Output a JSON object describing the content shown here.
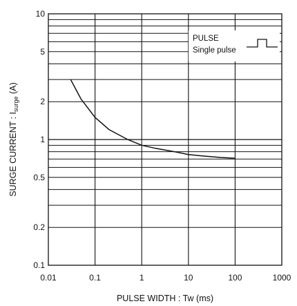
{
  "chart_data": {
    "type": "line",
    "x_scale": "log",
    "y_scale": "log",
    "xlim": [
      0.01,
      1000
    ],
    "ylim": [
      0.1,
      10
    ],
    "x_ticks": [
      "0.01",
      "0.1",
      "1",
      "10",
      "100",
      "1000"
    ],
    "y_ticks": [
      "0.1",
      "0.2",
      "0.5",
      "1",
      "2",
      "5",
      "10"
    ],
    "xlabel": "PULSE  WIDTH : Tw (ms)",
    "ylabel_main": "SURGE  CURRENT : I",
    "ylabel_sub": "surge",
    "ylabel_unit": " (A)",
    "legend": {
      "title": "PULSE",
      "entry": "Single pulse",
      "placement": "top-right",
      "icon": "single-pulse-waveform-icon"
    },
    "grid": true,
    "series": [
      {
        "x": [
          0.03,
          0.05,
          0.1,
          0.2,
          0.5,
          1,
          2,
          5,
          10,
          20,
          50,
          100
        ],
        "y": [
          3.0,
          2.1,
          1.5,
          1.2,
          1.0,
          0.9,
          0.85,
          0.8,
          0.76,
          0.74,
          0.72,
          0.71
        ]
      }
    ],
    "colors": {
      "line": "#111111",
      "grid": "#111111",
      "background": "#ffffff"
    }
  }
}
